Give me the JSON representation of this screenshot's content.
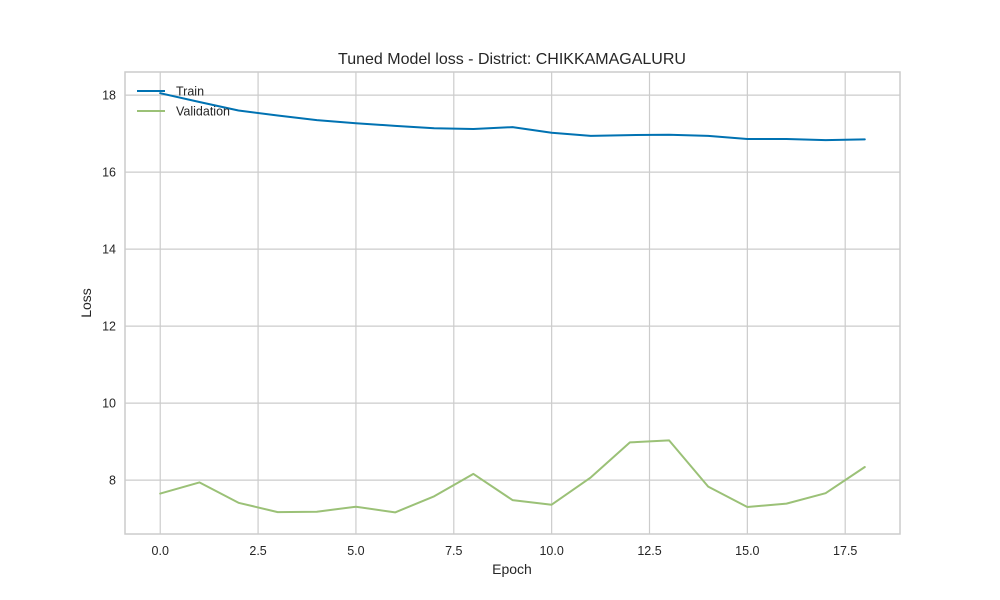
{
  "chart_data": {
    "type": "line",
    "title": "Tuned Model loss - District: CHIKKAMAGALURU",
    "xlabel": "Epoch",
    "ylabel": "Loss",
    "x": [
      0,
      1,
      2,
      3,
      4,
      5,
      6,
      7,
      8,
      9,
      10,
      11,
      12,
      13,
      14,
      15,
      16,
      17,
      18
    ],
    "xlim": [
      -0.9,
      18.9
    ],
    "ylim": [
      6.6,
      18.6
    ],
    "xticks": [
      0.0,
      2.5,
      5.0,
      7.5,
      10.0,
      12.5,
      15.0,
      17.5
    ],
    "xtick_labels": [
      "0.0",
      "2.5",
      "5.0",
      "7.5",
      "10.0",
      "12.5",
      "15.0",
      "17.5"
    ],
    "yticks": [
      8,
      10,
      12,
      14,
      16,
      18
    ],
    "ytick_labels": [
      "8",
      "10",
      "12",
      "14",
      "16",
      "18"
    ],
    "grid": true,
    "legend_position": "top-left",
    "series": [
      {
        "name": "Train",
        "color": "#0072b2",
        "values": [
          18.05,
          17.82,
          17.6,
          17.47,
          17.35,
          17.27,
          17.2,
          17.14,
          17.12,
          17.17,
          17.02,
          16.94,
          16.96,
          16.97,
          16.94,
          16.86,
          16.86,
          16.83,
          16.85
        ]
      },
      {
        "name": "Validation",
        "color": "#9bc177",
        "values": [
          7.65,
          7.94,
          7.41,
          7.17,
          7.18,
          7.31,
          7.16,
          7.58,
          8.16,
          7.48,
          7.36,
          8.07,
          8.98,
          9.03,
          7.83,
          7.3,
          7.39,
          7.66,
          8.34
        ]
      }
    ]
  }
}
